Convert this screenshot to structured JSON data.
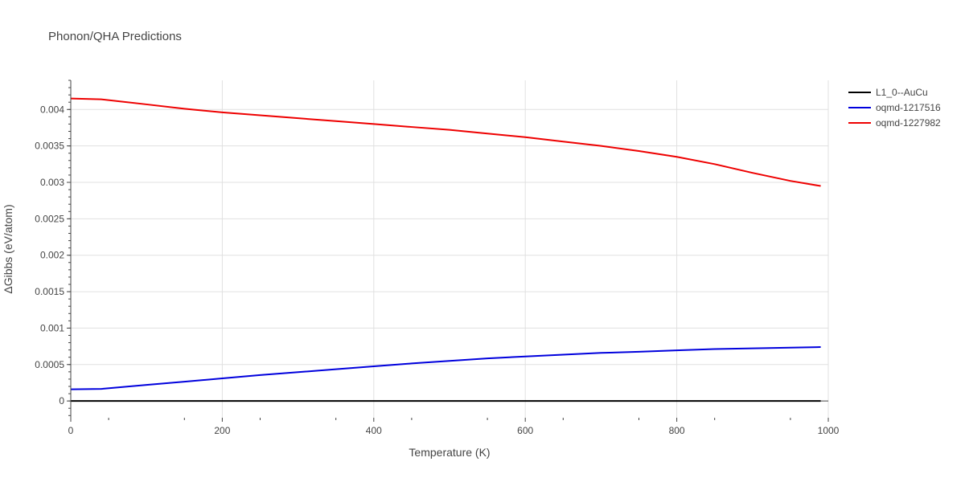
{
  "chart_data": {
    "type": "line",
    "title": "Phonon/QHA Predictions",
    "xlabel": "Temperature (K)",
    "ylabel": "ΔGibbs (eV/atom)",
    "xlim": [
      0,
      1000
    ],
    "ylim": [
      -0.00023,
      0.0044
    ],
    "x_ticks": [
      0,
      200,
      400,
      600,
      800,
      1000
    ],
    "x_tick_labels": [
      "0",
      "200",
      "400",
      "600",
      "800",
      "1000"
    ],
    "y_ticks": [
      0,
      0.0005,
      0.001,
      0.0015,
      0.002,
      0.0025,
      0.003,
      0.0035,
      0.004
    ],
    "y_tick_labels": [
      "0",
      "0.0005",
      "0.001",
      "0.0015",
      "0.002",
      "0.0025",
      "0.003",
      "0.0035",
      "0.004"
    ],
    "grid": true,
    "legend_position": "top-right",
    "series": [
      {
        "name": "L1_0--AuCu",
        "color": "#000000",
        "x": [
          0,
          100,
          200,
          300,
          400,
          500,
          600,
          700,
          800,
          900,
          990
        ],
        "y": [
          0,
          0,
          0,
          0,
          0,
          0,
          0,
          0,
          0,
          0,
          0
        ]
      },
      {
        "name": "oqmd-1217516",
        "color": "#0000dd",
        "x": [
          0,
          40,
          100,
          150,
          200,
          250,
          300,
          350,
          400,
          450,
          500,
          550,
          600,
          650,
          700,
          750,
          800,
          850,
          900,
          950,
          990
        ],
        "y": [
          0.00016,
          0.000165,
          0.00022,
          0.000265,
          0.00031,
          0.000355,
          0.000395,
          0.000435,
          0.000475,
          0.000515,
          0.00055,
          0.000585,
          0.00061,
          0.000635,
          0.00066,
          0.000675,
          0.000695,
          0.000712,
          0.000722,
          0.000732,
          0.00074
        ]
      },
      {
        "name": "oqmd-1227982",
        "color": "#ee0000",
        "x": [
          0,
          40,
          100,
          150,
          200,
          250,
          300,
          350,
          400,
          450,
          500,
          550,
          600,
          650,
          700,
          750,
          800,
          850,
          900,
          950,
          990
        ],
        "y": [
          0.00415,
          0.00414,
          0.00407,
          0.00401,
          0.00396,
          0.00392,
          0.00388,
          0.00384,
          0.0038,
          0.00376,
          0.00372,
          0.00367,
          0.00362,
          0.00356,
          0.0035,
          0.00343,
          0.00335,
          0.00325,
          0.00313,
          0.00302,
          0.00295
        ]
      }
    ]
  }
}
